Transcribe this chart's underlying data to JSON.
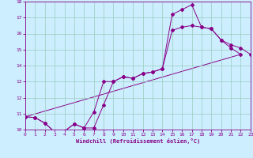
{
  "title": "",
  "xlabel": "Windchill (Refroidissement éolien,°C)",
  "bg_color": "#cceeff",
  "line_color": "#880088",
  "grid_color": "#99ccbb",
  "xmin": 0,
  "xmax": 23,
  "ymin": 10,
  "ymax": 18,
  "series1_x": [
    0,
    1,
    2,
    3,
    4,
    5,
    6,
    7,
    8,
    9,
    10,
    11,
    12,
    13,
    14,
    15,
    16,
    17,
    18,
    19,
    20,
    21,
    22
  ],
  "series1_y": [
    10.8,
    10.75,
    10.4,
    9.85,
    9.9,
    10.35,
    10.1,
    10.1,
    11.55,
    13.0,
    13.3,
    13.2,
    13.5,
    13.6,
    13.8,
    17.2,
    17.5,
    17.8,
    16.4,
    16.3,
    15.6,
    15.1,
    14.7
  ],
  "series2_x": [
    0,
    1,
    2,
    3,
    4,
    5,
    6,
    7,
    8,
    9,
    10,
    11,
    12,
    13,
    14,
    15,
    16,
    17,
    18,
    19,
    20,
    21,
    22,
    23
  ],
  "series2_y": [
    10.8,
    10.75,
    10.4,
    9.85,
    9.9,
    10.35,
    10.1,
    11.1,
    13.0,
    13.0,
    13.3,
    13.2,
    13.5,
    13.6,
    13.8,
    16.2,
    16.4,
    16.5,
    16.4,
    16.3,
    15.6,
    15.3,
    15.1,
    14.7
  ],
  "series3_x": [
    0,
    22
  ],
  "series3_y": [
    10.8,
    14.7
  ]
}
